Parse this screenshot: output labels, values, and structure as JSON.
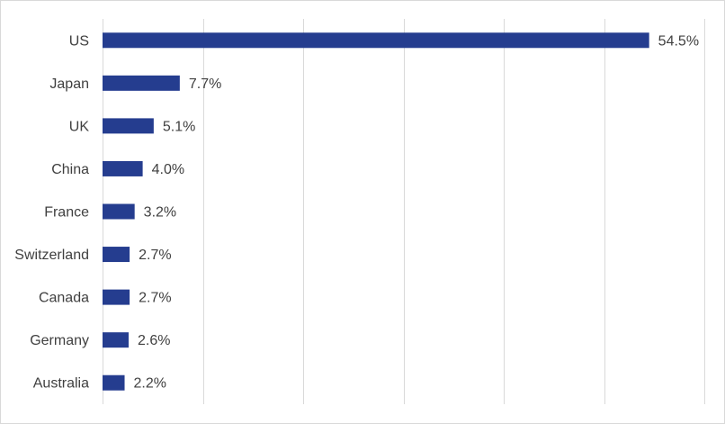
{
  "chart_data": {
    "type": "bar",
    "orientation": "horizontal",
    "categories": [
      "US",
      "Japan",
      "UK",
      "China",
      "France",
      "Switzerland",
      "Canada",
      "Germany",
      "Australia"
    ],
    "values": [
      54.5,
      7.7,
      5.1,
      4.0,
      3.2,
      2.7,
      2.7,
      2.6,
      2.2
    ],
    "value_labels": [
      "54.5%",
      "7.7%",
      "5.1%",
      "4.0%",
      "3.2%",
      "2.7%",
      "2.7%",
      "2.6%",
      "2.2%"
    ],
    "bar_color": "#253d8f",
    "xlim": [
      0,
      60
    ],
    "grid": true,
    "legend": "none"
  }
}
